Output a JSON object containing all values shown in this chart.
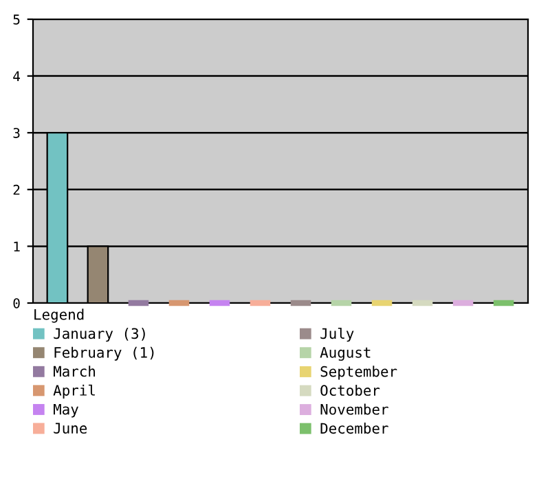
{
  "chart_data": {
    "type": "bar",
    "legend_title": "Legend",
    "legend": "bottom",
    "grid": "y",
    "categories": [
      null,
      null,
      null,
      null,
      null,
      null,
      null,
      null,
      null,
      null,
      null,
      null
    ],
    "ylim": [
      0,
      5
    ],
    "yticks": [
      0,
      1,
      2,
      3,
      4,
      5
    ],
    "series": [
      {
        "name": "January (3)",
        "color": "#72c2c2",
        "values": [
          3,
          null,
          null,
          null,
          null,
          null,
          null,
          null,
          null,
          null,
          null,
          null
        ]
      },
      {
        "name": "February (1)",
        "color": "#958672",
        "values": [
          null,
          1,
          null,
          null,
          null,
          null,
          null,
          null,
          null,
          null,
          null,
          null
        ]
      },
      {
        "name": "March",
        "color": "#937aa0",
        "values": [
          null,
          null,
          0,
          null,
          null,
          null,
          null,
          null,
          null,
          null,
          null,
          null
        ]
      },
      {
        "name": "April",
        "color": "#d79770",
        "values": [
          null,
          null,
          null,
          0,
          null,
          null,
          null,
          null,
          null,
          null,
          null,
          null
        ]
      },
      {
        "name": "May",
        "color": "#c583f0",
        "values": [
          null,
          null,
          null,
          null,
          0,
          null,
          null,
          null,
          null,
          null,
          null,
          null
        ]
      },
      {
        "name": "June",
        "color": "#f7ae99",
        "values": [
          null,
          null,
          null,
          null,
          null,
          0,
          null,
          null,
          null,
          null,
          null,
          null
        ]
      },
      {
        "name": "July",
        "color": "#9b8b8b",
        "values": [
          null,
          null,
          null,
          null,
          null,
          null,
          0,
          null,
          null,
          null,
          null,
          null
        ]
      },
      {
        "name": "August",
        "color": "#b6d4a8",
        "values": [
          null,
          null,
          null,
          null,
          null,
          null,
          null,
          0,
          null,
          null,
          null,
          null
        ]
      },
      {
        "name": "September",
        "color": "#e8d471",
        "values": [
          null,
          null,
          null,
          null,
          null,
          null,
          null,
          null,
          0,
          null,
          null,
          null
        ]
      },
      {
        "name": "October",
        "color": "#d5dac0",
        "values": [
          null,
          null,
          null,
          null,
          null,
          null,
          null,
          null,
          null,
          0,
          null,
          null
        ]
      },
      {
        "name": "November",
        "color": "#dcaede",
        "values": [
          null,
          null,
          null,
          null,
          null,
          null,
          null,
          null,
          null,
          null,
          0,
          null
        ]
      },
      {
        "name": "December",
        "color": "#7cc06c",
        "values": [
          null,
          null,
          null,
          null,
          null,
          null,
          null,
          null,
          null,
          null,
          null,
          0
        ]
      }
    ]
  }
}
